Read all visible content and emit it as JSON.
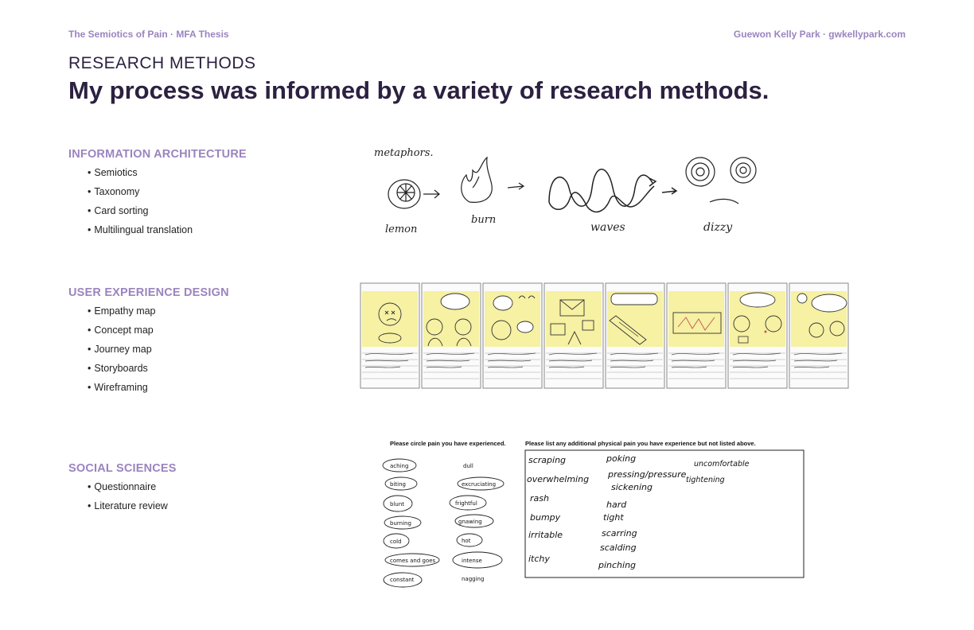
{
  "header": {
    "left": "The Semiotics of Pain · MFA Thesis",
    "right": "Guewon Kelly Park · gwkellypark.com"
  },
  "section_label": "RESEARCH METHODS",
  "headline": "My process was informed by a variety of research methods.",
  "categories": [
    {
      "title": "INFORMATION ARCHITECTURE",
      "items": [
        "Semiotics",
        "Taxonomy",
        "Card sorting",
        "Multilingual translation"
      ]
    },
    {
      "title": "USER EXPERIENCE DESIGN",
      "items": [
        "Empathy map",
        "Concept map",
        "Journey map",
        "Storyboards",
        "Wireframing"
      ]
    },
    {
      "title": "SOCIAL SCIENCES",
      "items": [
        "Questionnaire",
        "Literature review"
      ]
    }
  ],
  "sketch": {
    "heading": "metaphors.",
    "labels": [
      "lemon",
      "burn",
      "waves",
      "dizzy"
    ]
  },
  "questionnaire": {
    "circle_prompt": "Please circle pain you have experienced.",
    "left_options": [
      "aching",
      "biting",
      "blunt",
      "burning",
      "cold",
      "comes and goes",
      "constant"
    ],
    "right_options": [
      "dull",
      "excruciating",
      "frightful",
      "gnawing",
      "hot",
      "intense",
      "nagging"
    ],
    "list_prompt": "Please list any additional physical pain you have experience but not listed above.",
    "col1": [
      "scraping",
      "overwhelming",
      "rash",
      "bumpy",
      "irritable",
      "itchy"
    ],
    "col2": [
      "poking",
      "pressing/pressure",
      "sickening",
      "hard",
      "tight",
      "scarring",
      "scalding",
      "pinching"
    ],
    "col3": [
      "uncomfortable",
      "tightening"
    ]
  },
  "colors": {
    "accent": "#9b84bf",
    "heading": "#2c2140",
    "sticky": "#f6f1a3"
  }
}
